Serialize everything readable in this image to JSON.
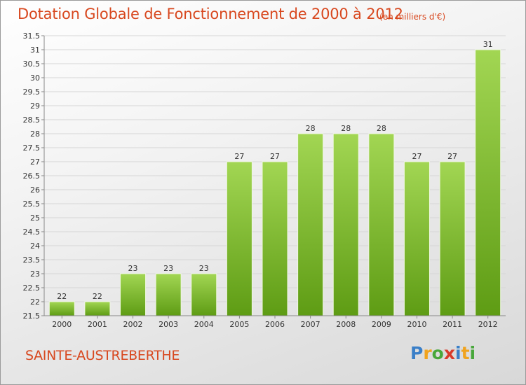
{
  "title": "Dotation Globale de Fonctionnement de 2000 à 2012",
  "subtitle": "(en milliers d'€)",
  "commune": "SAINTE-AUSTREBERTHE",
  "logo": {
    "letters": [
      "P",
      "r",
      "o",
      "x",
      "i",
      "t",
      "i"
    ],
    "colors": [
      "#3a7fc8",
      "#f0a31e",
      "#48a73b",
      "#d83a2a",
      "#3a7fc8",
      "#f0a31e",
      "#48a73b"
    ]
  },
  "colors": {
    "title": "#d8481f",
    "bar_top": "#a2d653",
    "bar_bottom": "#5e9c14",
    "grid": "#d6d6d6",
    "axis_text": "#333333"
  },
  "chart_data": {
    "type": "bar",
    "categories": [
      "2000",
      "2001",
      "2002",
      "2003",
      "2004",
      "2005",
      "2006",
      "2007",
      "2008",
      "2009",
      "2010",
      "2011",
      "2012"
    ],
    "values": [
      22,
      22,
      23,
      23,
      23,
      27,
      27,
      28,
      28,
      28,
      27,
      27,
      31
    ],
    "data_labels": [
      "22",
      "22",
      "23",
      "23",
      "23",
      "27",
      "27",
      "28",
      "28",
      "28",
      "27",
      "27",
      "31"
    ],
    "ylim": [
      21.5,
      31.5
    ],
    "yticks": [
      21.5,
      22,
      22.5,
      23,
      23.5,
      24,
      24.5,
      25,
      25.5,
      26,
      26.5,
      27,
      27.5,
      28,
      28.5,
      29,
      29.5,
      30,
      30.5,
      31,
      31.5
    ],
    "ytick_labels": [
      "21.5",
      "22",
      "22.5",
      "23",
      "23.5",
      "24",
      "24.5",
      "25",
      "25.5",
      "26",
      "26.5",
      "27",
      "27.5",
      "28",
      "28.5",
      "29",
      "29.5",
      "30",
      "30.5",
      "31",
      "31.5"
    ],
    "grid": true,
    "legend": "none"
  }
}
